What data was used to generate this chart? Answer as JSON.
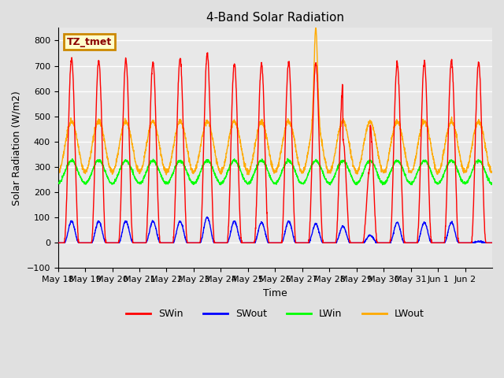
{
  "title": "4-Band Solar Radiation",
  "xlabel": "Time",
  "ylabel": "Solar Radiation (W/m2)",
  "ylim": [
    -100,
    850
  ],
  "yticks": [
    -100,
    0,
    100,
    200,
    300,
    400,
    500,
    600,
    700,
    800
  ],
  "annotation_text": "TZ_tmet",
  "series_colors": {
    "SWin": "#ff0000",
    "SWout": "#0000ff",
    "LWin": "#00ff00",
    "LWout": "#ffaa00"
  },
  "background_color": "#e8e8e8",
  "grid_color": "#ffffff",
  "xticklabels": [
    "May 18",
    "May 19",
    "May 20",
    "May 21",
    "May 22",
    "May 23",
    "May 24",
    "May 25",
    "May 26",
    "May 27",
    "May 28",
    "May 29",
    "May 30",
    "May 31",
    "Jun 1",
    "Jun 2"
  ],
  "n_days": 16,
  "SWin_peaks": [
    730,
    720,
    725,
    715,
    730,
    745,
    710,
    705,
    715,
    710,
    625,
    460,
    710,
    715,
    720,
    715
  ],
  "SWout_peaks": [
    85,
    85,
    85,
    85,
    85,
    100,
    85,
    80,
    85,
    75,
    65,
    30,
    80,
    80,
    80,
    5
  ],
  "LWin_base": 280,
  "LWout_base": 380,
  "LWin_amp": 45,
  "LWout_amp": 100
}
